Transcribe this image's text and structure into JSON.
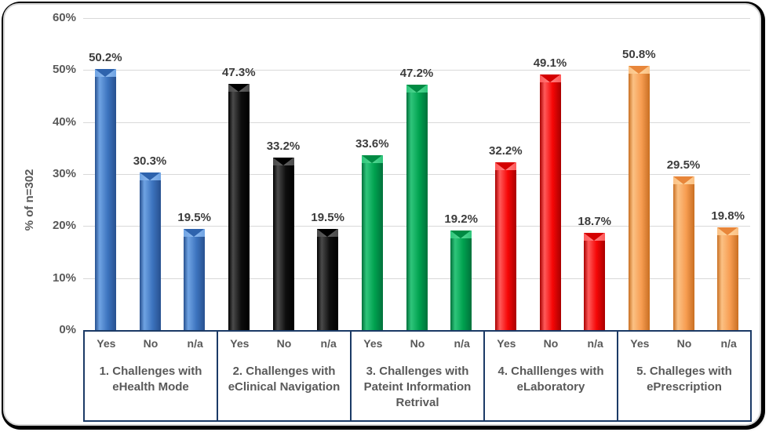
{
  "page": {
    "background_outside": "#000000",
    "card_background": "#ffffff",
    "card_border_color": "#D6D6D6"
  },
  "chart_data": {
    "type": "bar",
    "title": "",
    "xlabel": "",
    "ylabel": "% of n=302",
    "ylim": [
      0,
      60
    ],
    "ytick_step": 10,
    "ytick_labels": [
      "0%",
      "10%",
      "20%",
      "30%",
      "40%",
      "50%",
      "60%"
    ],
    "grid": true,
    "legend": "none",
    "value_suffix": "%",
    "gridline_color": "#D9D9D9",
    "axis_box_border_color": "#1B3A66",
    "axis_text_color": "#595959",
    "value_label_color": "#3C3C3C",
    "sub_categories": [
      "Yes",
      "No",
      "n/a"
    ],
    "groups": [
      {
        "label": "1. Challenges with eHealth Mode",
        "label_lines": [
          "1. Challenges with",
          "eHealth Mode"
        ],
        "color_name": "blue",
        "colors": {
          "mid": "#3D74BF",
          "light": "#6FA3E3",
          "xlight": "#8FBBF0",
          "dark": "#27508F",
          "tri": "#2E63AD"
        },
        "values": [
          50.2,
          30.3,
          19.5
        ]
      },
      {
        "label": "2. Challenges with eClinical Navigation",
        "label_lines": [
          "2. Challenges with",
          "eClinical Navigation"
        ],
        "color_name": "black",
        "colors": {
          "mid": "#0E0E0E",
          "light": "#4A4A4A",
          "xlight": "#616161",
          "dark": "#000000",
          "tri": "#000000"
        },
        "values": [
          47.3,
          33.2,
          19.5
        ]
      },
      {
        "label": "3. Challenges with Pateint Information Retrival",
        "label_lines": [
          "3. Challenges with",
          "Pateint Information",
          "Retrival"
        ],
        "color_name": "green",
        "colors": {
          "mid": "#00A24F",
          "light": "#2FC57B",
          "xlight": "#55D892",
          "dark": "#00713B",
          "tri": "#008A43"
        },
        "values": [
          33.6,
          47.2,
          19.2
        ]
      },
      {
        "label": "4. Challlenges with eLaboratory",
        "label_lines": [
          "4. Challlenges with",
          "eLaboratory"
        ],
        "color_name": "red",
        "colors": {
          "mid": "#F60606",
          "light": "#FF5A5A",
          "xlight": "#FF8282",
          "dark": "#A80000",
          "tri": "#D40000"
        },
        "values": [
          32.2,
          49.1,
          18.7
        ]
      },
      {
        "label": "5. Challeges with ePrescription",
        "label_lines": [
          "5. Challeges with",
          "ePrescription"
        ],
        "color_name": "orange",
        "colors": {
          "mid": "#F79D52",
          "light": "#FBC184",
          "xlight": "#FDD49E",
          "dark": "#C96F22",
          "tri": "#E8863A"
        },
        "values": [
          50.8,
          29.5,
          19.8
        ]
      }
    ]
  }
}
